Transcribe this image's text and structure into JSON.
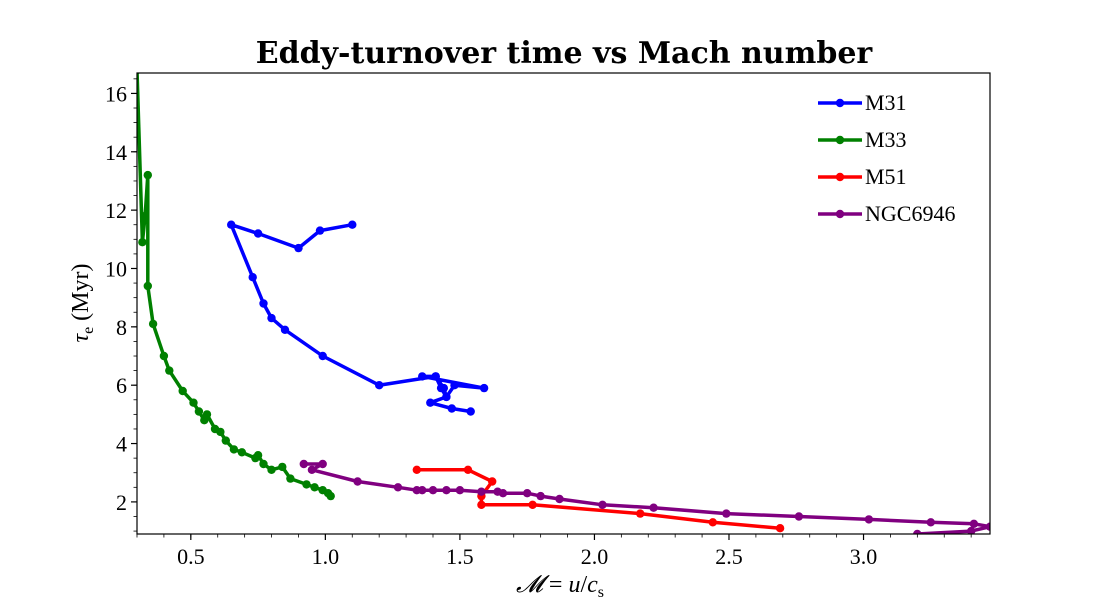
{
  "chart_data": {
    "type": "line",
    "title": "Eddy-turnover time vs Mach number",
    "xlabel_parts": [
      "𝓜",
      " = ",
      "u",
      "/",
      "c",
      "s"
    ],
    "ylabel_parts": [
      "τ",
      "e",
      " (Myr)"
    ],
    "xlim": [
      0.3,
      3.47
    ],
    "ylim": [
      0.9,
      16.7
    ],
    "xticks": [
      0.5,
      1.0,
      1.5,
      2.0,
      2.5,
      3.0
    ],
    "xtick_labels": [
      "0.5",
      "1.0",
      "1.5",
      "2.0",
      "2.5",
      "3.0"
    ],
    "yticks": [
      2,
      4,
      6,
      8,
      10,
      12,
      14,
      16
    ],
    "ytick_labels": [
      "2",
      "4",
      "6",
      "8",
      "10",
      "12",
      "14",
      "16"
    ],
    "grid": false,
    "legend_position": "top-right",
    "series": [
      {
        "name": "M31",
        "color": "#0000ff",
        "x": [
          1.1,
          0.98,
          0.9,
          0.75,
          0.65,
          0.73,
          0.77,
          0.8,
          0.85,
          0.99,
          1.2,
          1.41,
          1.43,
          1.45,
          1.48,
          1.59,
          1.36,
          1.41,
          1.44,
          1.45,
          1.39,
          1.47,
          1.54
        ],
        "y": [
          11.5,
          11.3,
          10.7,
          11.2,
          11.5,
          9.7,
          8.8,
          8.3,
          7.9,
          7.0,
          6.0,
          6.3,
          5.9,
          5.6,
          6.0,
          5.9,
          6.3,
          6.3,
          5.9,
          5.6,
          5.4,
          5.2,
          5.1
        ]
      },
      {
        "name": "M33",
        "color": "#008000",
        "x": [
          0.3,
          0.32,
          0.33,
          0.34,
          0.34,
          0.36,
          0.4,
          0.42,
          0.47,
          0.51,
          0.53,
          0.55,
          0.56,
          0.59,
          0.61,
          0.63,
          0.66,
          0.69,
          0.74,
          0.75,
          0.77,
          0.8,
          0.84,
          0.87,
          0.93,
          0.96,
          0.99,
          1.01,
          1.02
        ],
        "y": [
          16.8,
          10.9,
          11.8,
          13.2,
          9.4,
          8.1,
          7.0,
          6.5,
          5.8,
          5.4,
          5.1,
          4.8,
          5.0,
          4.5,
          4.4,
          4.1,
          3.8,
          3.7,
          3.5,
          3.6,
          3.3,
          3.1,
          3.2,
          2.8,
          2.6,
          2.5,
          2.4,
          2.3,
          2.2
        ]
      },
      {
        "name": "M51",
        "color": "#ff0000",
        "x": [
          1.34,
          1.53,
          1.62,
          1.58,
          1.58,
          1.77,
          2.17,
          2.44,
          2.69
        ],
        "y": [
          3.1,
          3.1,
          2.7,
          2.2,
          1.9,
          1.9,
          1.6,
          1.3,
          1.1
        ]
      },
      {
        "name": "NGC6946",
        "color": "#800080",
        "x": [
          0.92,
          0.99,
          0.95,
          1.12,
          1.27,
          1.34,
          1.36,
          1.4,
          1.45,
          1.5,
          1.58,
          1.64,
          1.66,
          1.75,
          1.8,
          1.87,
          2.03,
          2.22,
          2.49,
          2.76,
          3.02,
          3.25,
          3.41,
          3.47,
          3.4,
          3.2
        ],
        "y": [
          3.3,
          3.3,
          3.1,
          2.7,
          2.5,
          2.4,
          2.4,
          2.4,
          2.4,
          2.4,
          2.35,
          2.35,
          2.3,
          2.3,
          2.2,
          2.1,
          1.9,
          1.8,
          1.6,
          1.5,
          1.4,
          1.3,
          1.25,
          1.15,
          1.0,
          0.9
        ]
      }
    ]
  }
}
